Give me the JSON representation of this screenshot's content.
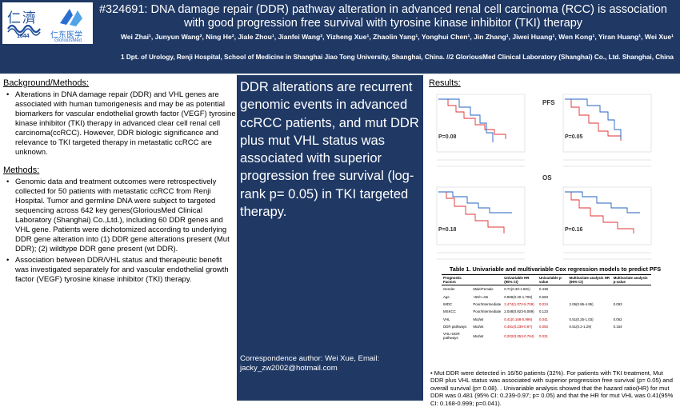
{
  "title": {
    "line1": "#324691:  DNA damage repair (DDR) pathway alteration in advanced renal cell carcinoma (RCC) is association",
    "line2": "with good progression free survival with tyrosine kinase inhibitor (TKI) therapy"
  },
  "authors": "Wei Zhai¹, Junyun Wang², Ning He², Jiale Zhou¹, Jianfei Wang², Yizheng Xue¹, Zhaolin Yang¹, Yonghui Chen¹, Jin Zhang¹, Jiwei Huang¹, Wen Kong¹, Yiran Huang¹, Wei Xue¹",
  "affiliation": "1 Dpt. of Urology, Renji Hospital, School of Medicine in Shanghai Jiao Tong University, Shanghai, China. //2 GloriousMed Clinical Laboratory (Shanghai) Co., Ltd. Shanghai, China",
  "logos": {
    "renji_cn": "仁濟",
    "renji_year": "1844",
    "gm_cn": "仁东医学",
    "gm_en": "GloriousMed"
  },
  "background": {
    "heading": "Background/Methods:",
    "text": "Alterations in DNA damage repair (DDR) and VHL genes are associated with human tumorigenesis and may be as potential biomarkers for vascular endothelial growth factor (VEGF) tyrosine kinase inhibitor (TKI) therapy in advanced clear cell renal cell carcinoma(ccRCC). However, DDR biologic significance and relevance to TKI targeted therapy in metastatic ccRCC are unknown."
  },
  "methods": {
    "heading": "Methods:",
    "bullet1": "Genomic data and treatment outcomes were retrospectively collected for 50 patients with metastatic ccRCC from Renji Hospital. Tumor and germline DNA were subject to targeted sequencing across 642 key genes(GloriousMed Clinical Laboratory (Shanghai) Co.,Ltd.), including 60 DDR genes and VHL gene. Patients were dichotomized according to underlying DDR gene alteration into (1) DDR gene alterations present (Mut DDR); (2) wildtype DDR gene present (wt DDR).",
    "bullet2": "Association between DDR/VHL status and therapeutic benefit was investigated separately for and vascular endothelial growth factor (VEGF) tyrosine kinase inhibitor (TKI) therapy."
  },
  "key_message": "DDR alterations are recurrent genomic events in advanced ccRCC patients, and mut DDR plus mut VHL status was associated with superior progression free survival (log-rank p= 0.05) in TKI targeted therapy.",
  "correspondence": "Correspondence author: Wei Xue, Email: jacky_zw2002@hotmail.com",
  "results": {
    "heading": "Results:",
    "pfs_label": "PFS",
    "os_label": "OS",
    "plots": [
      {
        "p": "P=0.08"
      },
      {
        "p": "P=0.05"
      },
      {
        "p": "P=0.18"
      },
      {
        "p": "P=0.16"
      }
    ],
    "table_title": "Table 1. Univariable and multivariable Cox regression models to predict PFS",
    "table_headers": [
      "Prognostic Factors",
      "",
      "Univariable HR (95% CI)",
      "Univariable p-value",
      "Multivariate analysis HR (95% CI)",
      "Multivariate analysis p-value"
    ],
    "table_rows": [
      [
        "Gender",
        "Male/Female",
        "0.71(0.30-1.681)",
        "0.438",
        "",
        ""
      ],
      [
        "Age",
        "<55/>=55",
        "0.869(0.40-1.709)",
        "0.683",
        "",
        ""
      ],
      [
        "IMDC",
        "Poor/Intermediate",
        "2.474(1.072-5.709)",
        "0.034",
        "2.06(0.86-4.95)",
        "0.093"
      ],
      [
        "MSKCC",
        "Poor/Intermediate",
        "2.048(0.923-5.089)",
        "0.123",
        "",
        ""
      ],
      [
        "VHL",
        "Mut/wt",
        "0.41(0.168-0.999)",
        "0.041",
        "0.51(0.25-1.03)",
        "0.062"
      ],
      [
        "DDR pathways",
        "Mut/wt",
        "0.481(0.239-0.97)",
        "0.050",
        "0.51(0.2-1.29)",
        "0.154"
      ],
      [
        "VHL+DDR pathways",
        "Mut/wt",
        "0.202(0.053-0.764)",
        "0.021",
        "",
        ""
      ]
    ],
    "summary": "Mut DDR were detected in 16/50 patients (32%). For patients with TKI treatment, Mut DDR plus VHL status was associated with superior progression free survival (p= 0.05) and overall survival (p= 0.08). . Univariable analysis showed that the hazard ratio(HR) for mut DDR was 0.481 (95% CI: 0.239-0.97; p= 0.05) and that the HR for mut VHL was 0.41(95% CI: 0.168-0.999; p=0.041)."
  }
}
